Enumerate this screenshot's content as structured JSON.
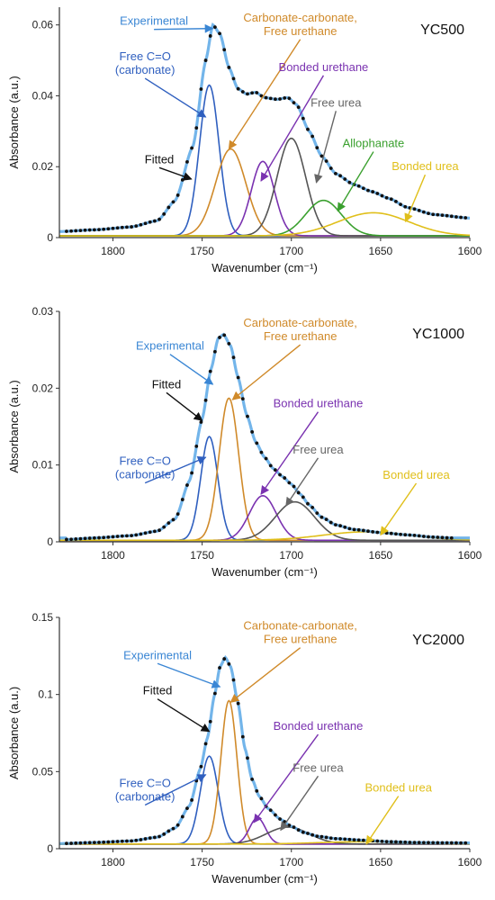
{
  "chart_data": [
    {
      "type": "line",
      "title": "YC500",
      "xlabel": "Wavenumber",
      "xlabel_unit": "(cm⁻¹)",
      "ylabel": "Absorbance (a.u.)",
      "xlim": [
        1830,
        1600
      ],
      "ylim": [
        0,
        0.065
      ],
      "x_ticks": [
        1800,
        1750,
        1700,
        1650,
        1600
      ],
      "y_ticks": [
        0,
        0.02,
        0.04,
        0.06
      ],
      "y_tick_labels": [
        "0",
        "0.02",
        "0.04",
        "0.06"
      ],
      "grid": false,
      "baseline": 0.0005,
      "experimental": {
        "name": "Experimental",
        "x_range": [
          1826,
          1600
        ],
        "points": [
          [
            1830,
            0.0017
          ],
          [
            1810,
            0.0022
          ],
          [
            1790,
            0.003
          ],
          [
            1775,
            0.0048
          ],
          [
            1765,
            0.0105
          ],
          [
            1755,
            0.026
          ],
          [
            1748,
            0.05
          ],
          [
            1744,
            0.06
          ],
          [
            1740,
            0.0575
          ],
          [
            1735,
            0.048
          ],
          [
            1730,
            0.042
          ],
          [
            1725,
            0.0405
          ],
          [
            1720,
            0.041
          ],
          [
            1715,
            0.0395
          ],
          [
            1708,
            0.039
          ],
          [
            1702,
            0.0395
          ],
          [
            1697,
            0.0375
          ],
          [
            1690,
            0.03
          ],
          [
            1683,
            0.023
          ],
          [
            1675,
            0.018
          ],
          [
            1665,
            0.015
          ],
          [
            1655,
            0.013
          ],
          [
            1645,
            0.011
          ],
          [
            1635,
            0.0085
          ],
          [
            1620,
            0.0065
          ],
          [
            1600,
            0.0055
          ]
        ]
      },
      "components": [
        {
          "name": "Free C=O (carbonate)",
          "center": 1746,
          "height": 0.0425,
          "width": 5.5,
          "color": "#2f5fbf"
        },
        {
          "name": "Carbonate-carbonate, Free urethane",
          "center": 1734,
          "height": 0.0245,
          "width": 8.5,
          "color": "#d08a2a"
        },
        {
          "name": "Bonded urethane",
          "center": 1716,
          "height": 0.021,
          "width": 6.5,
          "color": "#7a32b0"
        },
        {
          "name": "Free urea",
          "center": 1700,
          "height": 0.0275,
          "width": 8.0,
          "color": "#555555"
        },
        {
          "name": "Allophanate",
          "center": 1682,
          "height": 0.01,
          "width": 10.0,
          "color": "#3aa02e"
        },
        {
          "name": "Bonded urea",
          "center": 1654,
          "height": 0.0065,
          "width": 20.0,
          "color": "#e0bf1a"
        }
      ],
      "annotations": [
        {
          "lines": [
            "Experimental"
          ],
          "color": "#3a86d4",
          "x": 1777,
          "y": 0.06,
          "anchor": "middle",
          "arrow_to": [
            1744,
            0.059
          ]
        },
        {
          "lines": [
            "Carbonate-carbonate,",
            "Free urethane"
          ],
          "color": "#d08a2a",
          "x": 1695,
          "y": 0.061,
          "anchor": "middle",
          "arrow_to": [
            1735,
            0.025
          ]
        },
        {
          "lines": [
            "Free C=O",
            "(carbonate)"
          ],
          "color": "#2f5fbf",
          "x": 1782,
          "y": 0.05,
          "anchor": "middle",
          "arrow_to": [
            1748,
            0.034
          ]
        },
        {
          "lines": [
            "Bonded urethane"
          ],
          "color": "#7a32b0",
          "x": 1682,
          "y": 0.047,
          "anchor": "middle",
          "arrow_to": [
            1717,
            0.016
          ]
        },
        {
          "lines": [
            "Free urea"
          ],
          "color": "#666666",
          "x": 1675,
          "y": 0.037,
          "anchor": "middle",
          "arrow_to": [
            1686,
            0.0155
          ]
        },
        {
          "lines": [
            "Fitted"
          ],
          "color": "#111111",
          "x": 1774,
          "y": 0.021,
          "anchor": "middle",
          "arrow_to": [
            1756,
            0.0165
          ]
        },
        {
          "lines": [
            "Allophanate"
          ],
          "color": "#3aa02e",
          "x": 1654,
          "y": 0.0255,
          "anchor": "middle",
          "arrow_to": [
            1674,
            0.0075
          ]
        },
        {
          "lines": [
            "Bonded urea"
          ],
          "color": "#e0bf1a",
          "x": 1625,
          "y": 0.019,
          "anchor": "middle",
          "arrow_to": [
            1636,
            0.0045
          ]
        }
      ]
    },
    {
      "type": "line",
      "title": "YC1000",
      "xlabel": "Wavenumber",
      "xlabel_unit": "(cm⁻¹)",
      "ylabel": "Absorbance (a.u.)",
      "xlim": [
        1830,
        1600
      ],
      "ylim": [
        0,
        0.03
      ],
      "x_ticks": [
        1800,
        1750,
        1700,
        1650,
        1600
      ],
      "y_ticks": [
        0,
        0.01,
        0.02,
        0.03
      ],
      "y_tick_labels": [
        "0",
        "0.01",
        "0.02",
        "0.03"
      ],
      "grid": false,
      "baseline": 0.0002,
      "experimental": {
        "name": "Experimental",
        "x_range": [
          1826,
          1610
        ],
        "points": [
          [
            1826,
            0.0003
          ],
          [
            1810,
            0.0005
          ],
          [
            1790,
            0.0008
          ],
          [
            1775,
            0.0014
          ],
          [
            1765,
            0.003
          ],
          [
            1757,
            0.008
          ],
          [
            1750,
            0.016
          ],
          [
            1745,
            0.0225
          ],
          [
            1741,
            0.0265
          ],
          [
            1738,
            0.027
          ],
          [
            1734,
            0.0255
          ],
          [
            1730,
            0.0215
          ],
          [
            1725,
            0.0165
          ],
          [
            1720,
            0.013
          ],
          [
            1715,
            0.011
          ],
          [
            1710,
            0.0095
          ],
          [
            1705,
            0.0085
          ],
          [
            1700,
            0.0075
          ],
          [
            1695,
            0.0062
          ],
          [
            1690,
            0.0048
          ],
          [
            1683,
            0.0032
          ],
          [
            1675,
            0.0022
          ],
          [
            1665,
            0.0016
          ],
          [
            1650,
            0.0012
          ],
          [
            1635,
            0.0009
          ],
          [
            1620,
            0.0006
          ],
          [
            1610,
            0.0005
          ]
        ]
      },
      "components": [
        {
          "name": "Free C=O (carbonate)",
          "center": 1746,
          "height": 0.0135,
          "width": 4.8,
          "color": "#2f5fbf"
        },
        {
          "name": "Carbonate-carbonate, Free urethane",
          "center": 1735,
          "height": 0.0185,
          "width": 5.5,
          "color": "#d08a2a"
        },
        {
          "name": "Bonded urethane",
          "center": 1716,
          "height": 0.0058,
          "width": 7.5,
          "color": "#7a32b0"
        },
        {
          "name": "Free urea",
          "center": 1698,
          "height": 0.005,
          "width": 11.0,
          "color": "#555555"
        },
        {
          "name": "Bonded urea",
          "center": 1658,
          "height": 0.0011,
          "width": 24.0,
          "color": "#e0bf1a"
        }
      ],
      "annotations": [
        {
          "lines": [
            "Carbonate-carbonate,",
            "Free urethane"
          ],
          "color": "#d08a2a",
          "x": 1695,
          "y": 0.028,
          "anchor": "middle",
          "arrow_to": [
            1733,
            0.0185
          ]
        },
        {
          "lines": [
            "Experimental"
          ],
          "color": "#3a86d4",
          "x": 1768,
          "y": 0.025,
          "anchor": "middle",
          "arrow_to": [
            1744,
            0.0205
          ]
        },
        {
          "lines": [
            "Fitted"
          ],
          "color": "#111111",
          "x": 1770,
          "y": 0.02,
          "anchor": "middle",
          "arrow_to": [
            1750,
            0.0158
          ]
        },
        {
          "lines": [
            "Bonded urethane"
          ],
          "color": "#7a32b0",
          "x": 1685,
          "y": 0.0175,
          "anchor": "middle",
          "arrow_to": [
            1717,
            0.0062
          ]
        },
        {
          "lines": [
            "Free C=O",
            "(carbonate)"
          ],
          "color": "#2f5fbf",
          "x": 1782,
          "y": 0.01,
          "anchor": "middle",
          "arrow_to": [
            1748,
            0.011
          ]
        },
        {
          "lines": [
            "Free urea"
          ],
          "color": "#666666",
          "x": 1685,
          "y": 0.0115,
          "anchor": "middle",
          "arrow_to": [
            1703,
            0.0047
          ]
        },
        {
          "lines": [
            "Bonded urea"
          ],
          "color": "#e0bf1a",
          "x": 1630,
          "y": 0.0082,
          "anchor": "middle",
          "arrow_to": [
            1650,
            0.0009
          ]
        }
      ]
    },
    {
      "type": "line",
      "title": "YC2000",
      "xlabel": "Wavenumber",
      "xlabel_unit": "(cm⁻¹)",
      "ylabel": "Absorbance (a.u.)",
      "xlim": [
        1830,
        1600
      ],
      "ylim": [
        0,
        0.15
      ],
      "x_ticks": [
        1800,
        1750,
        1700,
        1650,
        1600
      ],
      "y_ticks": [
        0,
        0.05,
        0.1,
        0.15
      ],
      "y_tick_labels": [
        "0",
        "0.05",
        "0.1",
        "0.15"
      ],
      "grid": false,
      "baseline": 0.003,
      "experimental": {
        "name": "Experimental",
        "x_range": [
          1826,
          1600
        ],
        "points": [
          [
            1830,
            0.0033
          ],
          [
            1810,
            0.004
          ],
          [
            1790,
            0.005
          ],
          [
            1775,
            0.0075
          ],
          [
            1765,
            0.0135
          ],
          [
            1757,
            0.028
          ],
          [
            1751,
            0.052
          ],
          [
            1747,
            0.072
          ],
          [
            1743,
            0.1
          ],
          [
            1740,
            0.118
          ],
          [
            1737,
            0.124
          ],
          [
            1734,
            0.118
          ],
          [
            1730,
            0.095
          ],
          [
            1726,
            0.065
          ],
          [
            1722,
            0.045
          ],
          [
            1718,
            0.034
          ],
          [
            1713,
            0.026
          ],
          [
            1706,
            0.019
          ],
          [
            1700,
            0.0145
          ],
          [
            1693,
            0.0105
          ],
          [
            1685,
            0.008
          ],
          [
            1675,
            0.0065
          ],
          [
            1660,
            0.0055
          ],
          [
            1645,
            0.0045
          ],
          [
            1630,
            0.004
          ],
          [
            1615,
            0.0038
          ],
          [
            1600,
            0.0037
          ]
        ]
      },
      "components": [
        {
          "name": "Free C=O (carbonate)",
          "center": 1746,
          "height": 0.057,
          "width": 5.0,
          "color": "#2f5fbf"
        },
        {
          "name": "Carbonate-carbonate, Free urethane",
          "center": 1735,
          "height": 0.093,
          "width": 4.5,
          "color": "#d08a2a"
        },
        {
          "name": "Bonded urethane",
          "center": 1719,
          "height": 0.017,
          "width": 4.5,
          "color": "#7a32b0"
        },
        {
          "name": "Free urea",
          "center": 1702,
          "height": 0.011,
          "width": 12.0,
          "color": "#555555"
        },
        {
          "name": "Bonded urea",
          "center": 1660,
          "height": 0.0015,
          "width": 25.0,
          "color": "#e0bf1a"
        }
      ],
      "annotations": [
        {
          "lines": [
            "Carbonate-carbonate,",
            "Free urethane"
          ],
          "color": "#d08a2a",
          "x": 1695,
          "y": 0.142,
          "anchor": "middle",
          "arrow_to": [
            1734,
            0.095
          ]
        },
        {
          "lines": [
            "Experimental"
          ],
          "color": "#3a86d4",
          "x": 1775,
          "y": 0.123,
          "anchor": "middle",
          "arrow_to": [
            1740,
            0.105
          ]
        },
        {
          "lines": [
            "Fitted"
          ],
          "color": "#111111",
          "x": 1775,
          "y": 0.1,
          "anchor": "middle",
          "arrow_to": [
            1746,
            0.076
          ]
        },
        {
          "lines": [
            "Bonded urethane"
          ],
          "color": "#7a32b0",
          "x": 1685,
          "y": 0.077,
          "anchor": "middle",
          "arrow_to": [
            1721,
            0.017
          ]
        },
        {
          "lines": [
            "Free C=O",
            "(carbonate)"
          ],
          "color": "#2f5fbf",
          "x": 1782,
          "y": 0.04,
          "anchor": "middle",
          "arrow_to": [
            1748,
            0.048
          ]
        },
        {
          "lines": [
            "Free urea"
          ],
          "color": "#666666",
          "x": 1685,
          "y": 0.05,
          "anchor": "middle",
          "arrow_to": [
            1706,
            0.012
          ]
        },
        {
          "lines": [
            "Bonded urea"
          ],
          "color": "#e0bf1a",
          "x": 1640,
          "y": 0.037,
          "anchor": "middle",
          "arrow_to": [
            1658,
            0.003
          ]
        }
      ]
    }
  ],
  "colors": {
    "experimental_dots": "#111111",
    "fitted_line": "#5aa8e6",
    "axis": "#333333"
  }
}
